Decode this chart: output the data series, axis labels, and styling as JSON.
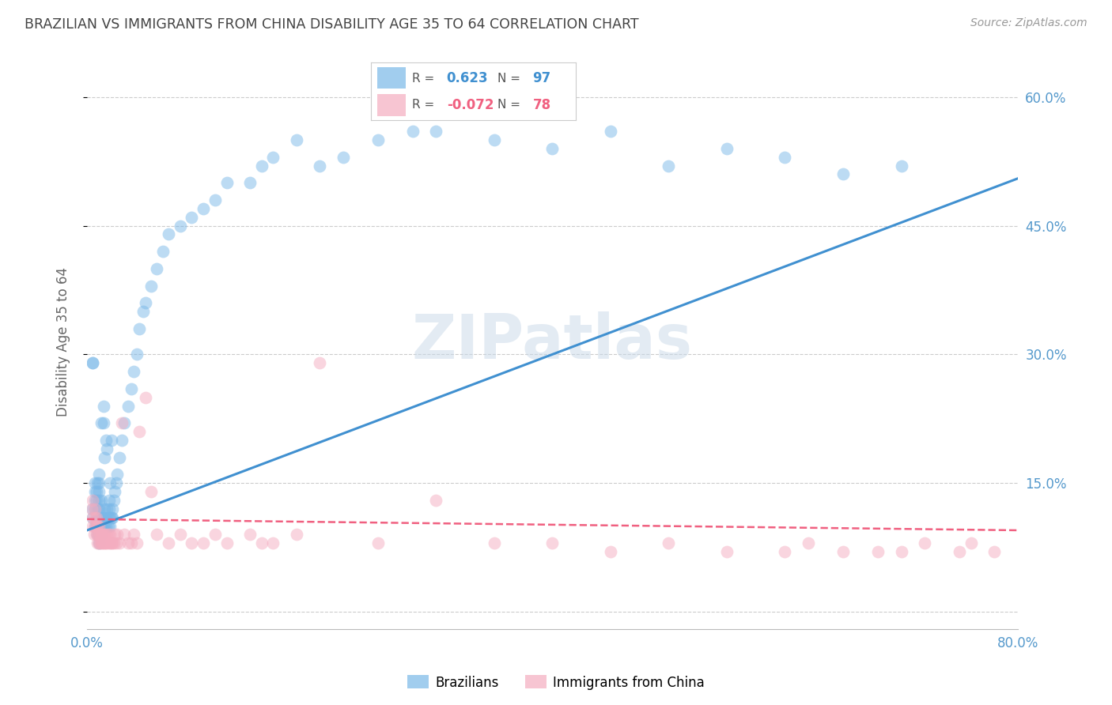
{
  "title": "BRAZILIAN VS IMMIGRANTS FROM CHINA DISABILITY AGE 35 TO 64 CORRELATION CHART",
  "source": "Source: ZipAtlas.com",
  "ylabel": "Disability Age 35 to 64",
  "xlim": [
    0.0,
    0.8
  ],
  "ylim": [
    -0.02,
    0.65
  ],
  "yticks": [
    0.0,
    0.15,
    0.3,
    0.45,
    0.6
  ],
  "ytick_labels": [
    "",
    "15.0%",
    "30.0%",
    "45.0%",
    "60.0%"
  ],
  "xticks": [
    0.0,
    0.1,
    0.2,
    0.3,
    0.4,
    0.5,
    0.6,
    0.7,
    0.8
  ],
  "xtick_labels": [
    "0.0%",
    "",
    "",
    "",
    "",
    "",
    "",
    "",
    "80.0%"
  ],
  "blue_R": 0.623,
  "blue_N": 97,
  "pink_R": -0.072,
  "pink_N": 78,
  "blue_color": "#7ab8e8",
  "pink_color": "#f4adc0",
  "blue_line_color": "#4090d0",
  "pink_line_color": "#f06080",
  "grid_color": "#cccccc",
  "background_color": "#ffffff",
  "watermark": "ZIPatlas",
  "title_color": "#444444",
  "axis_label_color": "#5599cc",
  "blue_scatter_x": [
    0.005,
    0.005,
    0.005,
    0.005,
    0.007,
    0.007,
    0.007,
    0.007,
    0.007,
    0.008,
    0.008,
    0.008,
    0.008,
    0.009,
    0.009,
    0.009,
    0.009,
    0.009,
    0.01,
    0.01,
    0.01,
    0.01,
    0.01,
    0.01,
    0.01,
    0.01,
    0.01,
    0.012,
    0.012,
    0.012,
    0.012,
    0.012,
    0.013,
    0.013,
    0.014,
    0.014,
    0.014,
    0.015,
    0.015,
    0.015,
    0.015,
    0.016,
    0.016,
    0.016,
    0.017,
    0.017,
    0.018,
    0.018,
    0.019,
    0.019,
    0.02,
    0.02,
    0.02,
    0.021,
    0.021,
    0.022,
    0.022,
    0.023,
    0.024,
    0.025,
    0.026,
    0.028,
    0.03,
    0.032,
    0.035,
    0.038,
    0.04,
    0.043,
    0.045,
    0.048,
    0.05,
    0.055,
    0.06,
    0.065,
    0.07,
    0.08,
    0.09,
    0.1,
    0.11,
    0.12,
    0.14,
    0.15,
    0.16,
    0.18,
    0.2,
    0.22,
    0.25,
    0.28,
    0.3,
    0.35,
    0.4,
    0.45,
    0.5,
    0.55,
    0.6,
    0.65,
    0.7
  ],
  "blue_scatter_y": [
    0.11,
    0.12,
    0.29,
    0.29,
    0.1,
    0.12,
    0.13,
    0.14,
    0.15,
    0.1,
    0.11,
    0.13,
    0.14,
    0.09,
    0.1,
    0.11,
    0.12,
    0.15,
    0.08,
    0.09,
    0.1,
    0.11,
    0.12,
    0.13,
    0.14,
    0.15,
    0.16,
    0.09,
    0.1,
    0.11,
    0.13,
    0.22,
    0.1,
    0.11,
    0.1,
    0.22,
    0.24,
    0.1,
    0.11,
    0.12,
    0.18,
    0.1,
    0.11,
    0.2,
    0.12,
    0.19,
    0.1,
    0.11,
    0.12,
    0.13,
    0.1,
    0.11,
    0.15,
    0.11,
    0.2,
    0.11,
    0.12,
    0.13,
    0.14,
    0.15,
    0.16,
    0.18,
    0.2,
    0.22,
    0.24,
    0.26,
    0.28,
    0.3,
    0.33,
    0.35,
    0.36,
    0.38,
    0.4,
    0.42,
    0.44,
    0.45,
    0.46,
    0.47,
    0.48,
    0.5,
    0.5,
    0.52,
    0.53,
    0.55,
    0.52,
    0.53,
    0.55,
    0.56,
    0.56,
    0.55,
    0.54,
    0.56,
    0.52,
    0.54,
    0.53,
    0.51,
    0.52
  ],
  "pink_scatter_x": [
    0.004,
    0.005,
    0.005,
    0.005,
    0.006,
    0.007,
    0.007,
    0.007,
    0.008,
    0.008,
    0.008,
    0.009,
    0.009,
    0.009,
    0.01,
    0.01,
    0.01,
    0.011,
    0.011,
    0.012,
    0.012,
    0.013,
    0.013,
    0.014,
    0.014,
    0.015,
    0.015,
    0.016,
    0.016,
    0.017,
    0.018,
    0.019,
    0.02,
    0.02,
    0.021,
    0.022,
    0.023,
    0.024,
    0.025,
    0.026,
    0.028,
    0.03,
    0.032,
    0.035,
    0.038,
    0.04,
    0.043,
    0.045,
    0.05,
    0.055,
    0.06,
    0.07,
    0.08,
    0.09,
    0.1,
    0.11,
    0.12,
    0.14,
    0.15,
    0.16,
    0.18,
    0.2,
    0.25,
    0.3,
    0.35,
    0.4,
    0.45,
    0.5,
    0.55,
    0.6,
    0.62,
    0.65,
    0.68,
    0.7,
    0.72,
    0.75,
    0.76,
    0.78
  ],
  "pink_scatter_y": [
    0.12,
    0.1,
    0.11,
    0.13,
    0.09,
    0.1,
    0.11,
    0.12,
    0.09,
    0.1,
    0.11,
    0.08,
    0.09,
    0.1,
    0.08,
    0.09,
    0.1,
    0.08,
    0.09,
    0.08,
    0.09,
    0.08,
    0.09,
    0.08,
    0.09,
    0.08,
    0.09,
    0.08,
    0.09,
    0.08,
    0.09,
    0.08,
    0.08,
    0.09,
    0.08,
    0.08,
    0.08,
    0.09,
    0.08,
    0.09,
    0.08,
    0.22,
    0.09,
    0.08,
    0.08,
    0.09,
    0.08,
    0.21,
    0.25,
    0.14,
    0.09,
    0.08,
    0.09,
    0.08,
    0.08,
    0.09,
    0.08,
    0.09,
    0.08,
    0.08,
    0.09,
    0.29,
    0.08,
    0.13,
    0.08,
    0.08,
    0.07,
    0.08,
    0.07,
    0.07,
    0.08,
    0.07,
    0.07,
    0.07,
    0.08,
    0.07,
    0.08,
    0.07
  ],
  "blue_line_x0": 0.0,
  "blue_line_y0": 0.095,
  "blue_line_x1": 0.8,
  "blue_line_y1": 0.505,
  "pink_line_x0": 0.0,
  "pink_line_y0": 0.108,
  "pink_line_x1": 0.8,
  "pink_line_y1": 0.095
}
